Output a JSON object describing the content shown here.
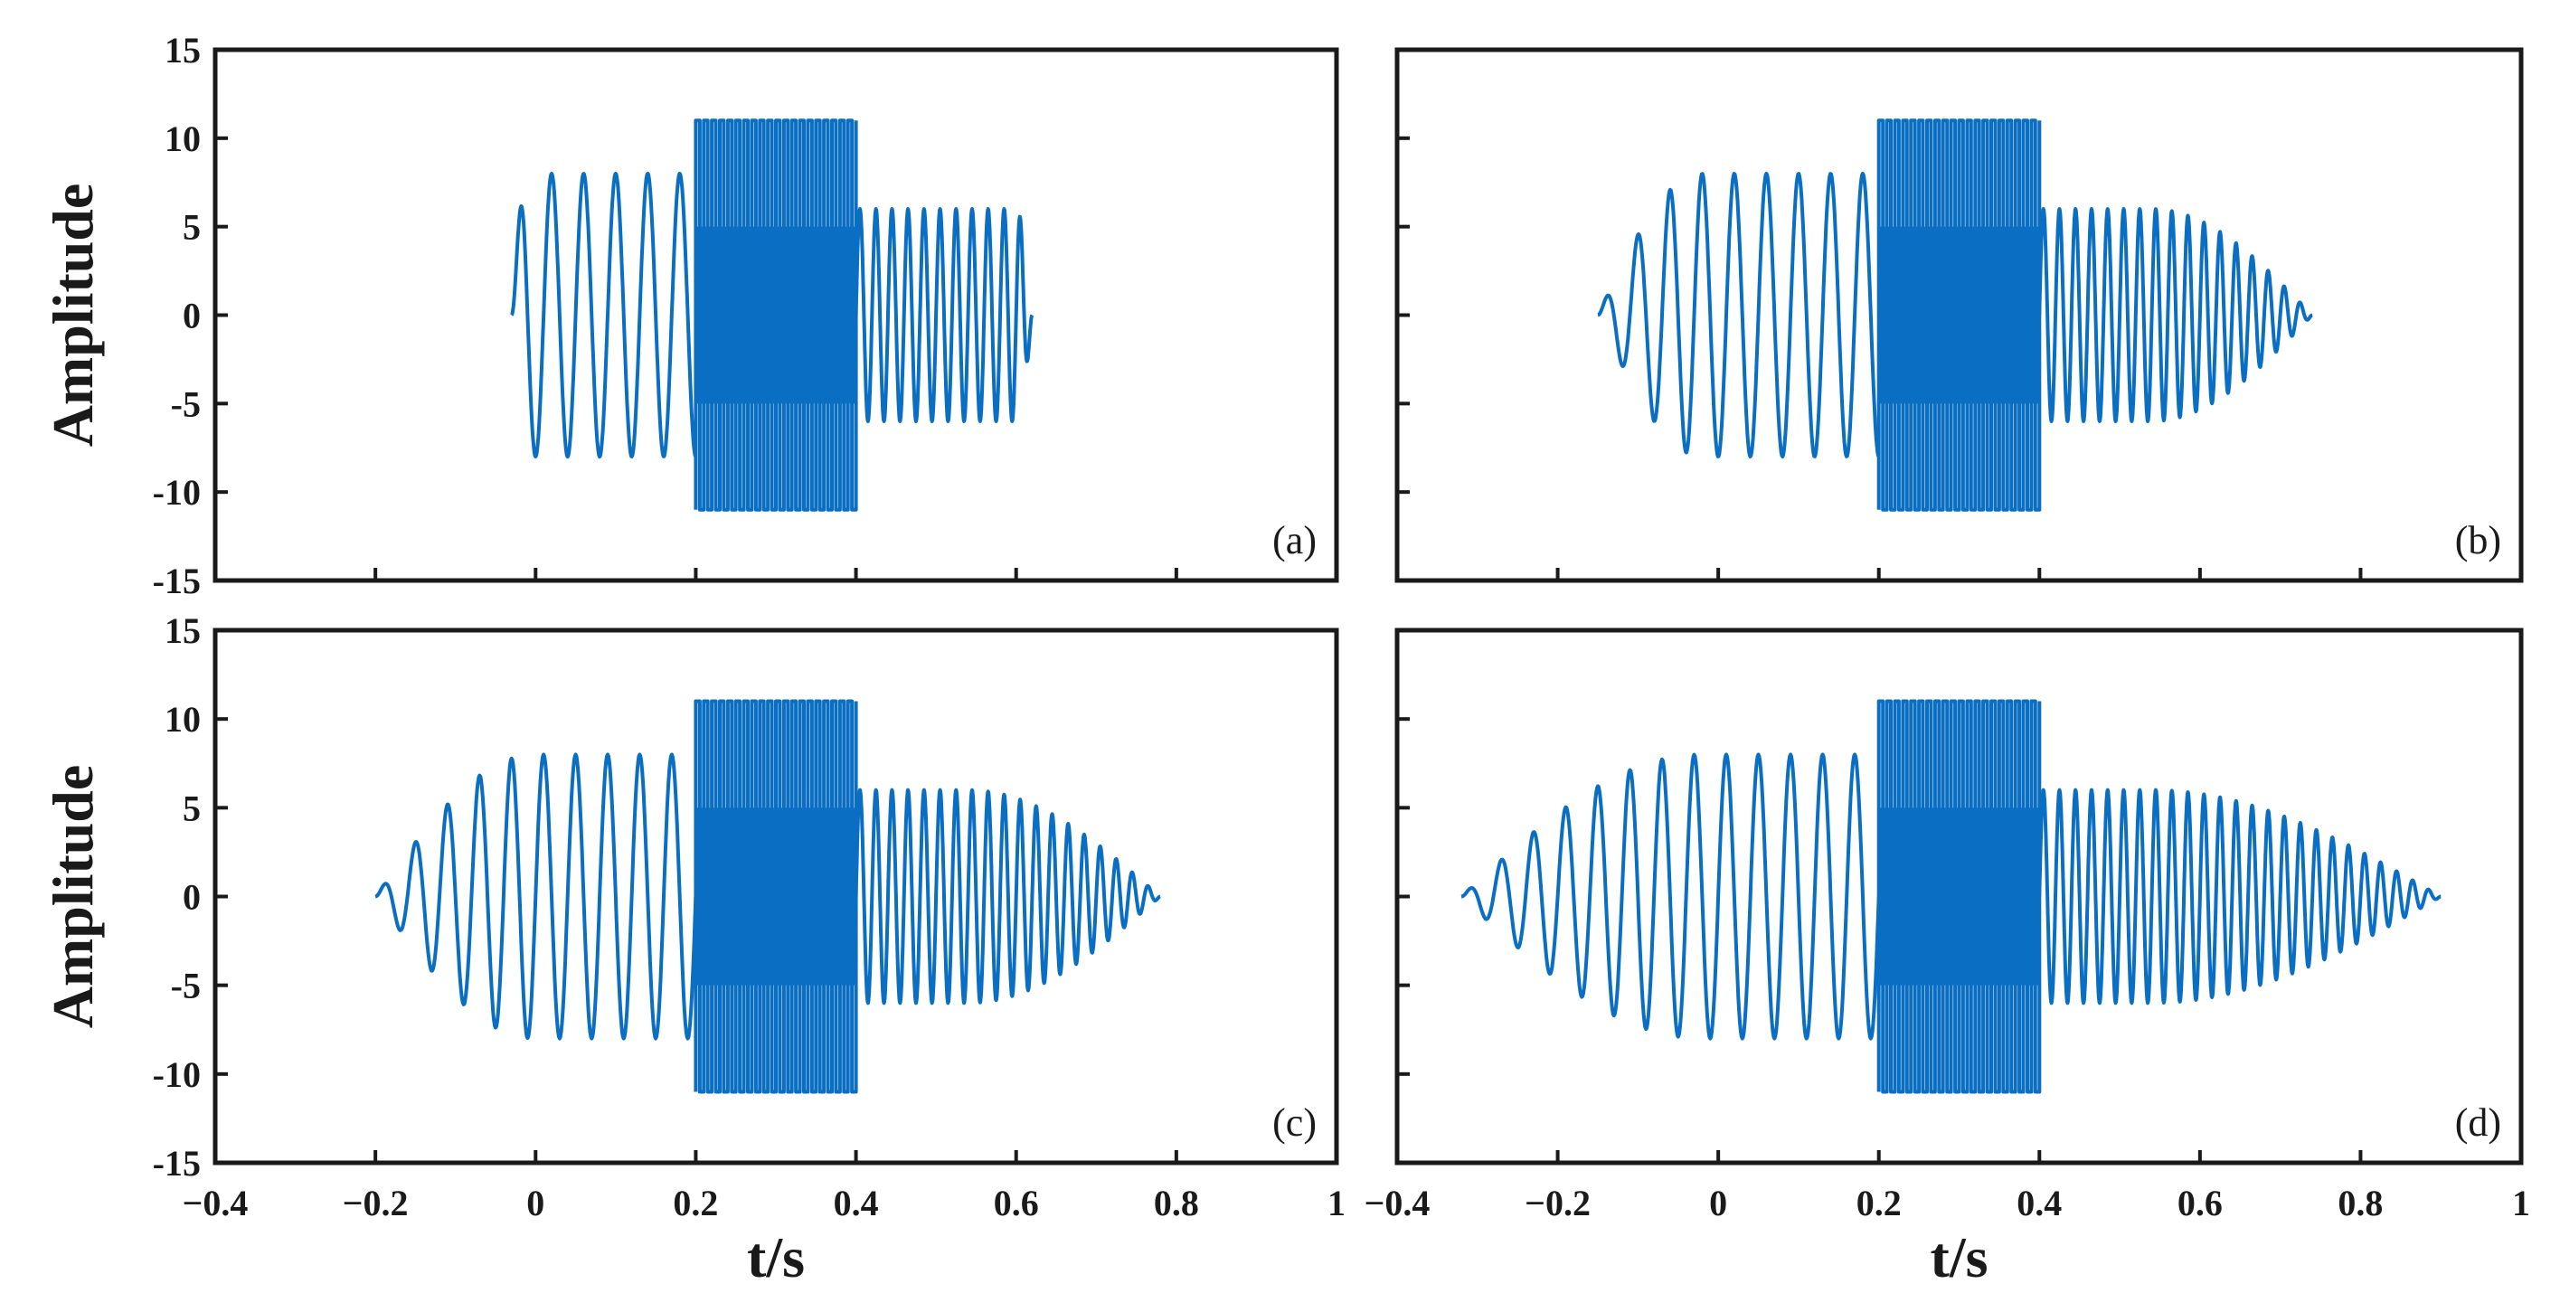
{
  "chart_data": [
    {
      "type": "line",
      "panel_label": "(a)",
      "ylabel": "Amplitude",
      "xlabel": "",
      "xlim": [
        -0.4,
        1
      ],
      "ylim": [
        -15,
        15
      ],
      "xticks": [
        "-0.4",
        "-0.2",
        "0",
        "0.2",
        "0.4",
        "0.6",
        "0.8",
        "1"
      ],
      "show_x_tick_labels": false,
      "yticks": [
        "15",
        "10",
        "5",
        "0",
        "-5",
        "-10",
        "-15"
      ],
      "series": [
        {
          "signal_segments": [
            {
              "t_start": -0.03,
              "t_end": 0.2,
              "amplitude": 8,
              "frequency_hz": 25,
              "ramp_in": 0.02,
              "ramp_out": 0
            },
            {
              "t_start": 0.2,
              "t_end": 0.4,
              "amplitude": 11,
              "frequency_hz": 100,
              "inner_amplitude": 5
            },
            {
              "t_start": 0.4,
              "t_end": 0.62,
              "amplitude": 6,
              "frequency_hz": 50,
              "ramp_in": 0,
              "ramp_out": 0.02
            }
          ]
        }
      ]
    },
    {
      "type": "line",
      "panel_label": "(b)",
      "ylabel": "",
      "xlabel": "",
      "xlim": [
        -0.4,
        1
      ],
      "ylim": [
        -15,
        15
      ],
      "xticks": [
        "-0.4",
        "-0.2",
        "0",
        "0.2",
        "0.4",
        "0.6",
        "0.8",
        "1"
      ],
      "show_x_tick_labels": false,
      "yticks": [],
      "series": [
        {
          "signal_segments": [
            {
              "t_start": -0.15,
              "t_end": 0.2,
              "amplitude": 8,
              "frequency_hz": 25,
              "ramp_in": 0.13,
              "ramp_out": 0
            },
            {
              "t_start": 0.2,
              "t_end": 0.4,
              "amplitude": 11,
              "frequency_hz": 100,
              "inner_amplitude": 5
            },
            {
              "t_start": 0.4,
              "t_end": 0.74,
              "amplitude": 6,
              "frequency_hz": 50,
              "ramp_in": 0,
              "ramp_out": 0.2
            }
          ]
        }
      ]
    },
    {
      "type": "line",
      "panel_label": "(c)",
      "ylabel": "Amplitude",
      "xlabel": "t/s",
      "xlim": [
        -0.4,
        1
      ],
      "ylim": [
        -15,
        15
      ],
      "xticks": [
        "−0.4",
        "−0.2",
        "0",
        "0.2",
        "0.4",
        "0.6",
        "0.8",
        "1"
      ],
      "show_x_tick_labels": true,
      "yticks": [
        "15",
        "10",
        "5",
        "0",
        "-5",
        "-10",
        "-15"
      ],
      "series": [
        {
          "signal_segments": [
            {
              "t_start": -0.2,
              "t_end": 0.2,
              "amplitude": 8,
              "frequency_hz": 25,
              "ramp_in": 0.2,
              "ramp_out": 0
            },
            {
              "t_start": 0.2,
              "t_end": 0.4,
              "amplitude": 11,
              "frequency_hz": 100,
              "inner_amplitude": 5
            },
            {
              "t_start": 0.4,
              "t_end": 0.78,
              "amplitude": 6,
              "frequency_hz": 50,
              "ramp_in": 0,
              "ramp_out": 0.24
            }
          ]
        }
      ]
    },
    {
      "type": "line",
      "panel_label": "(d)",
      "ylabel": "",
      "xlabel": "t/s",
      "xlim": [
        -0.4,
        1
      ],
      "ylim": [
        -15,
        15
      ],
      "xticks": [
        "−0.4",
        "−0.2",
        "0",
        "0.2",
        "0.4",
        "0.6",
        "0.8",
        "1"
      ],
      "show_x_tick_labels": true,
      "yticks": [],
      "series": [
        {
          "signal_segments": [
            {
              "t_start": -0.32,
              "t_end": 0.2,
              "amplitude": 8,
              "frequency_hz": 25,
              "ramp_in": 0.3,
              "ramp_out": 0
            },
            {
              "t_start": 0.2,
              "t_end": 0.4,
              "amplitude": 11,
              "frequency_hz": 100,
              "inner_amplitude": 5
            },
            {
              "t_start": 0.4,
              "t_end": 0.9,
              "amplitude": 6,
              "frequency_hz": 50,
              "ramp_in": 0,
              "ramp_out": 0.36
            }
          ]
        }
      ]
    }
  ],
  "colors": {
    "signal": "#0a6fc2",
    "axes": "#1a1a1a",
    "background": "#ffffff"
  }
}
